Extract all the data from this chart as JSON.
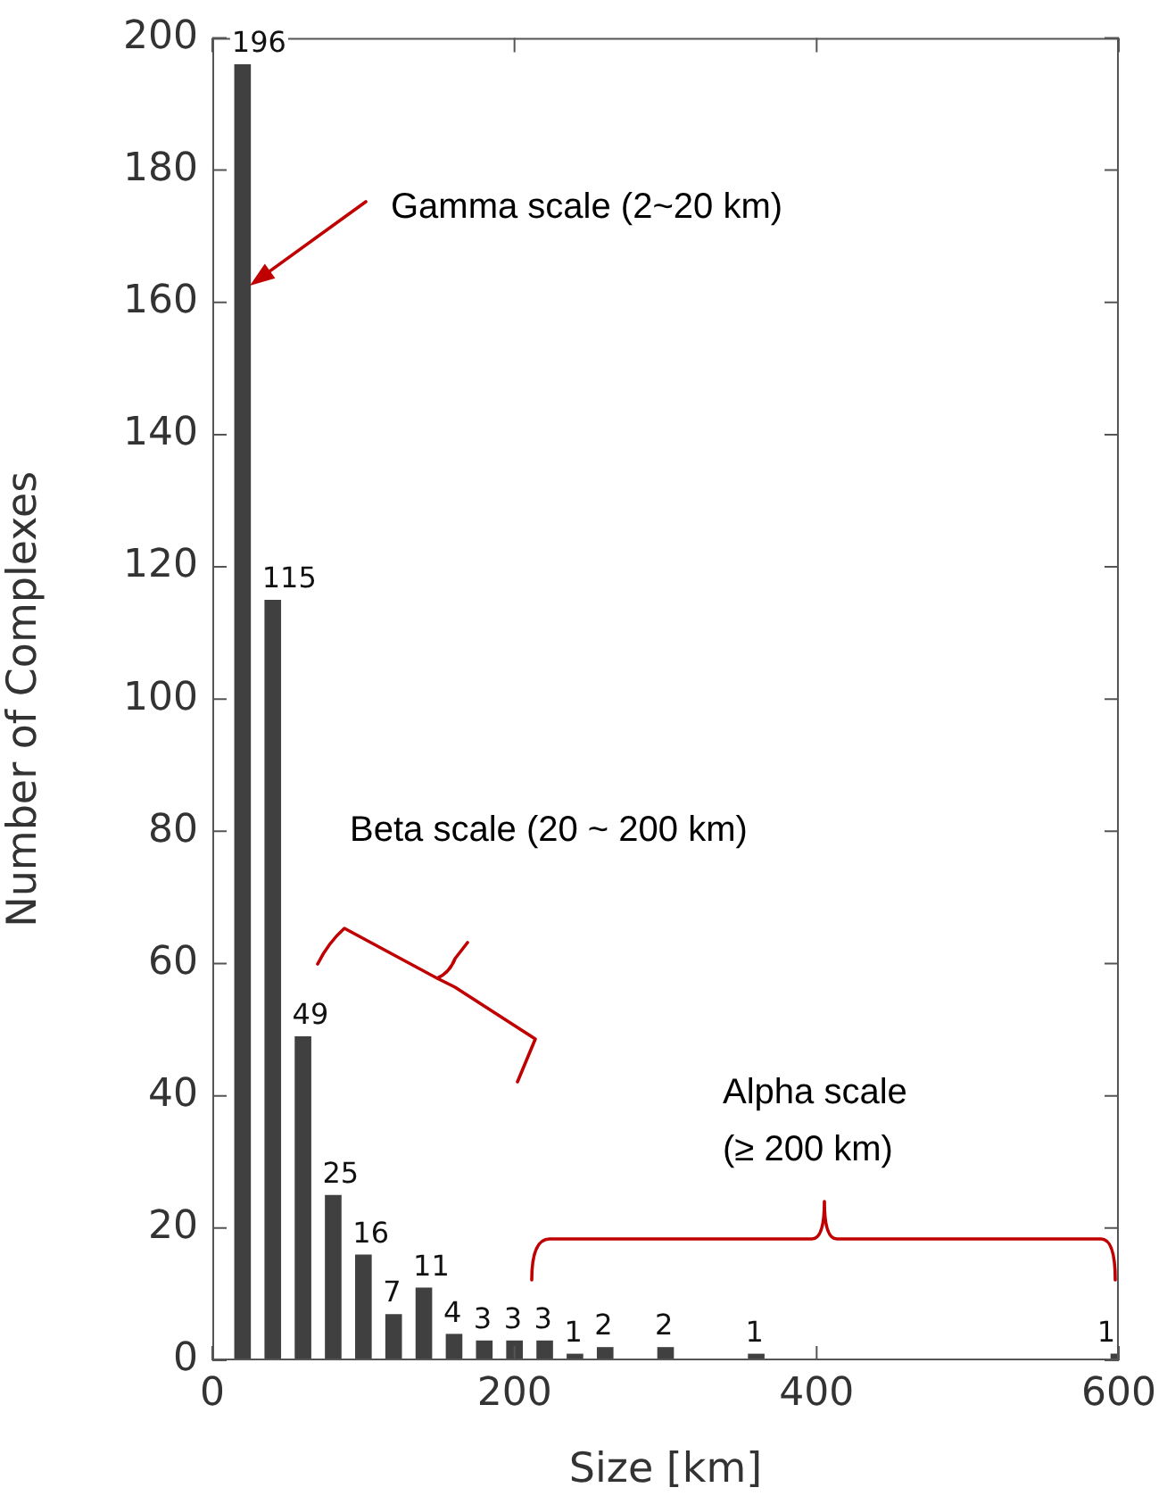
{
  "chart_data": {
    "type": "bar",
    "x": [
      20,
      40,
      60,
      80,
      100,
      120,
      140,
      160,
      180,
      200,
      220,
      240,
      260,
      300,
      360,
      600
    ],
    "values": [
      196,
      115,
      49,
      25,
      16,
      7,
      11,
      4,
      3,
      3,
      3,
      1,
      2,
      2,
      1,
      1
    ],
    "color": "#404040",
    "xlabel": "Size [km]",
    "ylabel": "Number of Complexes",
    "xlim": [
      0,
      600
    ],
    "xticks": [
      0,
      200,
      400,
      600
    ],
    "ylim": [
      0,
      200
    ],
    "yticks": [
      0,
      20,
      40,
      60,
      80,
      100,
      120,
      140,
      160,
      180,
      200
    ],
    "data_labels": true,
    "annotations": [
      "Gamma scale (2~20 km)",
      "Beta scale (20 ~ 200 km)",
      "Alpha scale (≥ 200 km)"
    ]
  }
}
